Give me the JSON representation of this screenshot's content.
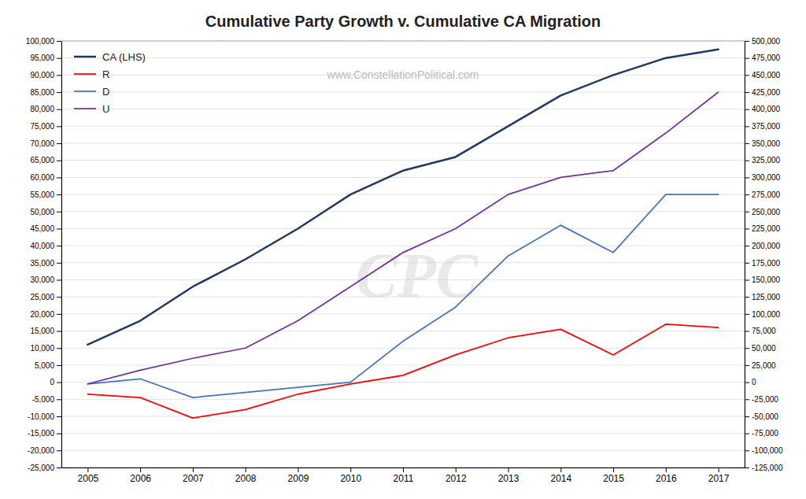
{
  "chart_data": {
    "type": "line",
    "title": "Cumulative Party Growth v. Cumulative CA Migration",
    "annotations": [
      {
        "text": "www.ConstellationPolitical.com"
      },
      {
        "text": "CPC"
      }
    ],
    "x": [
      2005,
      2006,
      2007,
      2008,
      2009,
      2010,
      2011,
      2012,
      2013,
      2014,
      2015,
      2016,
      2017
    ],
    "xlim": [
      2004.5,
      2017.5
    ],
    "xticks": [
      2005,
      2006,
      2007,
      2008,
      2009,
      2010,
      2011,
      2012,
      2013,
      2014,
      2015,
      2016,
      2017
    ],
    "series": [
      {
        "name": "CA (LHS)",
        "color": "#1F3864",
        "values": [
          11000,
          18000,
          28000,
          36000,
          45000,
          55000,
          62000,
          66000,
          75000,
          84000,
          90000,
          95000,
          97500
        ]
      },
      {
        "name": "R",
        "color": "#FF0000",
        "values": [
          -3500,
          -4500,
          -10500,
          -8000,
          -3500,
          -500,
          2000,
          8000,
          13000,
          15500,
          8000,
          17000,
          16000
        ]
      },
      {
        "name": "D",
        "color": "#4472C4",
        "values": [
          -500,
          1000,
          -4500,
          -3000,
          -1500,
          0,
          12000,
          22000,
          37000,
          46000,
          38000,
          55000,
          55000
        ]
      },
      {
        "name": "U",
        "color": "#7030A0",
        "values": [
          -500,
          3500,
          7000,
          10000,
          18000,
          28000,
          38000,
          45000,
          55000,
          60000,
          62000,
          73000,
          85000
        ]
      }
    ],
    "ylim": [
      -25000,
      100000
    ],
    "yticks": [
      {
        "value": -25000,
        "label": "-25,000"
      },
      {
        "value": -20000,
        "label": "-20,000"
      },
      {
        "value": -15000,
        "label": "-15,000"
      },
      {
        "value": -10000,
        "label": "-10,000"
      },
      {
        "value": -5000,
        "label": "-5,000"
      },
      0,
      {
        "value": 5000,
        "label": "5,000"
      },
      {
        "value": 10000,
        "label": "10,000"
      },
      {
        "value": 15000,
        "label": "15,000"
      },
      {
        "value": 20000,
        "label": "20,000"
      },
      {
        "value": 25000,
        "label": "25,000"
      },
      {
        "value": 30000,
        "label": "30,000"
      },
      {
        "value": 35000,
        "label": "35,000"
      },
      {
        "value": 40000,
        "label": "40,000"
      },
      {
        "value": 45000,
        "label": "45,000"
      },
      {
        "value": 50000,
        "label": "50,000"
      },
      {
        "value": 55000,
        "label": "55,000"
      },
      {
        "value": 60000,
        "label": "60,000"
      },
      {
        "value": 65000,
        "label": "65,000"
      },
      {
        "value": 70000,
        "label": "70,000"
      },
      {
        "value": 75000,
        "label": "75,000"
      },
      {
        "value": 80000,
        "label": "80,000"
      },
      {
        "value": 85000,
        "label": "85,000"
      },
      {
        "value": 90000,
        "label": "90,000"
      },
      {
        "value": 95000,
        "label": "95,000"
      },
      {
        "value": 100000,
        "label": "100,000"
      }
    ],
    "y2lim": [
      -125000,
      500000
    ],
    "y2ticks": [
      {
        "value": -125000,
        "label": "-125,000"
      },
      {
        "value": -100000,
        "label": "-100,000"
      },
      {
        "value": -75000,
        "label": "-75,000"
      },
      {
        "value": -50000,
        "label": "-50,000"
      },
      {
        "value": -25000,
        "label": "-25,000"
      },
      0,
      {
        "value": 25000,
        "label": "25,000"
      },
      {
        "value": 50000,
        "label": "50,000"
      },
      {
        "value": 75000,
        "label": "75,000"
      },
      {
        "value": 100000,
        "label": "100,000"
      },
      {
        "value": 125000,
        "label": "125,000"
      },
      {
        "value": 150000,
        "label": "150,000"
      },
      {
        "value": 175000,
        "label": "175,000"
      },
      {
        "value": 200000,
        "label": "200,000"
      },
      {
        "value": 225000,
        "label": "225,000"
      },
      {
        "value": 250000,
        "label": "250,000"
      },
      {
        "value": 275000,
        "label": "275,000"
      },
      {
        "value": 300000,
        "label": "300,000"
      },
      {
        "value": 325000,
        "label": "325,000"
      },
      {
        "value": 350000,
        "label": "350,000"
      },
      {
        "value": 375000,
        "label": "375,000"
      },
      {
        "value": 400000,
        "label": "400,000"
      },
      {
        "value": 425000,
        "label": "425,000"
      },
      {
        "value": 450000,
        "label": "450,000"
      },
      {
        "value": 475000,
        "label": "475,000"
      },
      {
        "value": 500000,
        "label": "500,000"
      }
    ],
    "grid": true,
    "legend": "upper left"
  }
}
